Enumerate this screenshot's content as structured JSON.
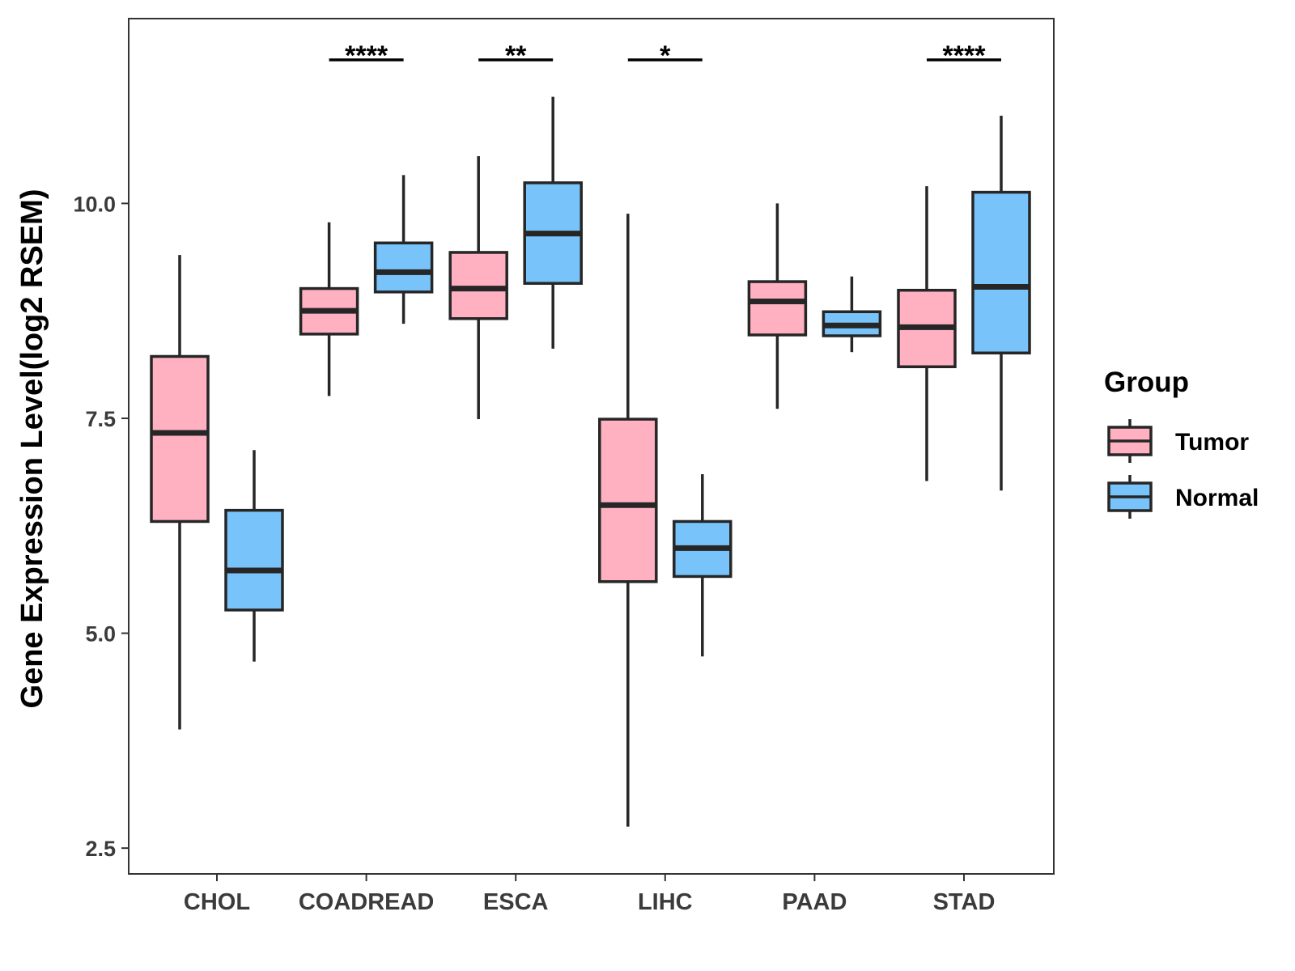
{
  "chart_data": {
    "type": "boxplot",
    "title": "",
    "xlabel": "",
    "ylabel": "Gene Expression Level(log2 RSEM)",
    "ylim": [
      2.2,
      12.15
    ],
    "yticks": [
      2.5,
      5.0,
      7.5,
      10.0
    ],
    "ytick_labels": [
      "2.5",
      "5.0",
      "7.5",
      "10.0"
    ],
    "categories": [
      "CHOL",
      "COADREAD",
      "ESCA",
      "LIHC",
      "PAAD",
      "STAD"
    ],
    "legend": {
      "title": "Group",
      "position": "right",
      "entries": [
        "Tumor",
        "Normal"
      ]
    },
    "colors": {
      "Tumor": "#ffb0c1",
      "Normal": "#78c3fa",
      "stroke": "#262626"
    },
    "series": [
      {
        "name": "Tumor",
        "boxes": [
          {
            "min": 3.88,
            "q1": 6.3,
            "median": 7.33,
            "q3": 8.22,
            "max": 9.4
          },
          {
            "min": 7.76,
            "q1": 8.48,
            "median": 8.75,
            "q3": 9.01,
            "max": 9.78
          },
          {
            "min": 7.49,
            "q1": 8.66,
            "median": 9.01,
            "q3": 9.43,
            "max": 10.55
          },
          {
            "min": 2.75,
            "q1": 5.6,
            "median": 6.49,
            "q3": 7.49,
            "max": 9.88
          },
          {
            "min": 7.61,
            "q1": 8.47,
            "median": 8.86,
            "q3": 9.09,
            "max": 10.0
          },
          {
            "min": 6.77,
            "q1": 8.1,
            "median": 8.56,
            "q3": 8.99,
            "max": 10.2
          }
        ]
      },
      {
        "name": "Normal",
        "boxes": [
          {
            "min": 4.67,
            "q1": 5.27,
            "median": 5.73,
            "q3": 6.43,
            "max": 7.13
          },
          {
            "min": 8.6,
            "q1": 8.97,
            "median": 9.2,
            "q3": 9.54,
            "max": 10.33
          },
          {
            "min": 8.31,
            "q1": 9.07,
            "median": 9.65,
            "q3": 10.24,
            "max": 11.24
          },
          {
            "min": 4.73,
            "q1": 5.66,
            "median": 5.99,
            "q3": 6.3,
            "max": 6.85
          },
          {
            "min": 8.27,
            "q1": 8.46,
            "median": 8.58,
            "q3": 8.74,
            "max": 9.15
          },
          {
            "min": 6.66,
            "q1": 8.26,
            "median": 9.03,
            "q3": 10.13,
            "max": 11.02
          }
        ]
      }
    ],
    "significance": [
      {
        "category": "COADREAD",
        "label": "****"
      },
      {
        "category": "ESCA",
        "label": "**"
      },
      {
        "category": "LIHC",
        "label": "*"
      },
      {
        "category": "STAD",
        "label": "****"
      }
    ]
  }
}
